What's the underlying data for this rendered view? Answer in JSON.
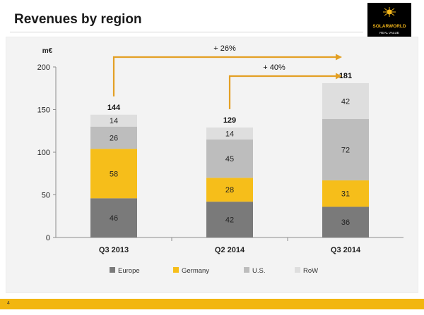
{
  "slide": {
    "title": "Revenues by region",
    "page_number": "4"
  },
  "logo": {
    "brand": "SOLARWORLD",
    "tagline": "REAL VALUE"
  },
  "chart_data": {
    "type": "bar",
    "stacked": true,
    "categories": [
      "Q3 2013",
      "Q2 2014",
      "Q3 2014"
    ],
    "series": [
      {
        "name": "Europe",
        "values": [
          46,
          42,
          36
        ],
        "color": "#7a7a7a"
      },
      {
        "name": "Germany",
        "values": [
          58,
          28,
          31
        ],
        "color": "#f6be1a"
      },
      {
        "name": "U.S.",
        "values": [
          26,
          45,
          72
        ],
        "color": "#bdbdbd"
      },
      {
        "name": "RoW",
        "values": [
          14,
          14,
          42
        ],
        "color": "#dedede"
      }
    ],
    "totals": [
      144,
      129,
      181
    ],
    "ylabel": "m€",
    "ylim": [
      0,
      200
    ],
    "yticks": [
      0,
      50,
      100,
      150,
      200
    ],
    "legend_position": "bottom",
    "grid": false,
    "annotations": [
      {
        "text": "+ 26%",
        "from": "Q3 2013",
        "to": "Q3 2014"
      },
      {
        "text": "+ 40%",
        "from": "Q2 2014",
        "to": "Q3 2014"
      }
    ],
    "arrow_color": "#e3a024"
  }
}
